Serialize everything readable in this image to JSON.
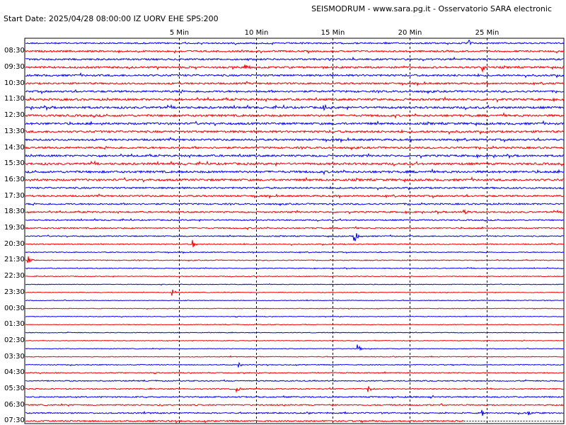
{
  "header": {
    "title": "SEISMODRUM - www.sara.pg.it - Osservatorio SARA electronic",
    "start_line": "Start Date: 2025/04/28 08:00:00 IZ UORV   EHE  SPS:200"
  },
  "colors": {
    "odd": "#0000ee",
    "even": "#ee0000",
    "grid": "#000000",
    "frame": "#000000"
  },
  "chart_data": {
    "type": "line",
    "title": "SEISMODRUM - www.sara.pg.it - Osservatorio SARA electronic",
    "subtitle": "Start Date: 2025/04/28 08:00:00 IZ UORV   EHE  SPS:200",
    "x_unit": "min",
    "x_range": [
      -5,
      30
    ],
    "x_ticks": [
      {
        "value": 5,
        "label": "5 Min"
      },
      {
        "value": 10,
        "label": "10 Min"
      },
      {
        "value": 15,
        "label": "15 Min"
      },
      {
        "value": 20,
        "label": "20 Min"
      },
      {
        "value": 25,
        "label": "25 Min"
      }
    ],
    "row_count": 48,
    "rows_per_hour": 2,
    "y_tick_labels": [
      "08:30",
      "09:30",
      "10:30",
      "11:30",
      "12:30",
      "13:30",
      "14:30",
      "15:30",
      "16:30",
      "17:30",
      "18:30",
      "19:30",
      "20:30",
      "21:30",
      "22:30",
      "23:30",
      "00:30",
      "01:30",
      "02:30",
      "03:30",
      "04:30",
      "05:30",
      "06:30",
      "07:30"
    ],
    "noise_level": [
      0.7,
      0.8,
      0.8,
      0.9,
      0.9,
      0.8,
      0.9,
      1.0,
      1.0,
      1.0,
      1.0,
      1.0,
      0.9,
      0.9,
      0.9,
      1.0,
      1.0,
      1.0,
      0.8,
      0.8,
      0.7,
      0.7,
      0.6,
      0.6,
      0.5,
      0.5,
      0.4,
      0.4,
      0.35,
      0.35,
      0.3,
      0.3,
      0.3,
      0.3,
      0.3,
      0.3,
      0.3,
      0.3,
      0.3,
      0.35,
      0.4,
      0.45,
      0.5,
      0.5,
      0.6,
      0.6,
      0.6,
      0.7
    ],
    "events": [
      {
        "row": 0,
        "minute": 23.8,
        "amp": 5
      },
      {
        "row": 3,
        "minute": 9.3,
        "amp": 5
      },
      {
        "row": 3,
        "minute": 24.7,
        "amp": 6
      },
      {
        "row": 8,
        "minute": 14.4,
        "amp": 5
      },
      {
        "row": 21,
        "minute": 23.5,
        "amp": 8
      },
      {
        "row": 24,
        "minute": 16.4,
        "amp": 10
      },
      {
        "row": 25,
        "minute": 5.9,
        "amp": 6
      },
      {
        "row": 27,
        "minute": -4.8,
        "amp": 8
      },
      {
        "row": 31,
        "minute": 4.6,
        "amp": 5
      },
      {
        "row": 38,
        "minute": 16.6,
        "amp": 6
      },
      {
        "row": 40,
        "minute": 8.9,
        "amp": 5
      },
      {
        "row": 43,
        "minute": 8.7,
        "amp": 6
      },
      {
        "row": 43,
        "minute": 17.3,
        "amp": 6
      },
      {
        "row": 46,
        "minute": 24.7,
        "amp": 5
      },
      {
        "row": 46,
        "minute": 27.7,
        "amp": 5
      }
    ],
    "last_row_end_minute": 23.5,
    "grid": "dashed vertical"
  }
}
